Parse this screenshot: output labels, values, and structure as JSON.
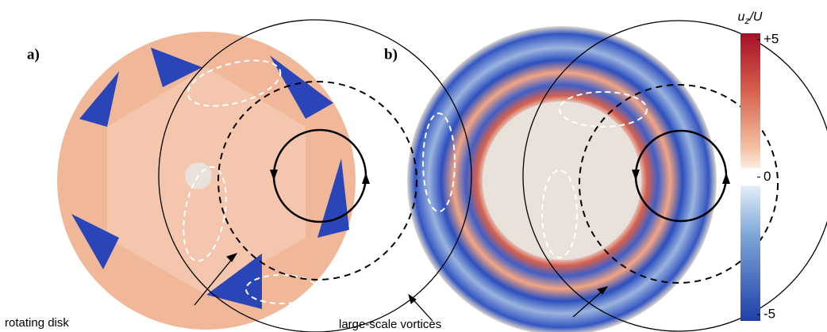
{
  "panels": [
    {
      "label": "a)"
    },
    {
      "label": "b)"
    }
  ],
  "annotations": [
    "rotating disk",
    "large-scale vortices"
  ],
  "colorbar": {
    "label": {
      "var": "u",
      "sub": "z",
      "rest": "/U"
    },
    "lim": [
      -5,
      5
    ],
    "ticks": [
      {
        "value": 5,
        "label": "+5"
      },
      0,
      {
        "value": -5,
        "label": "-5"
      }
    ]
  }
}
